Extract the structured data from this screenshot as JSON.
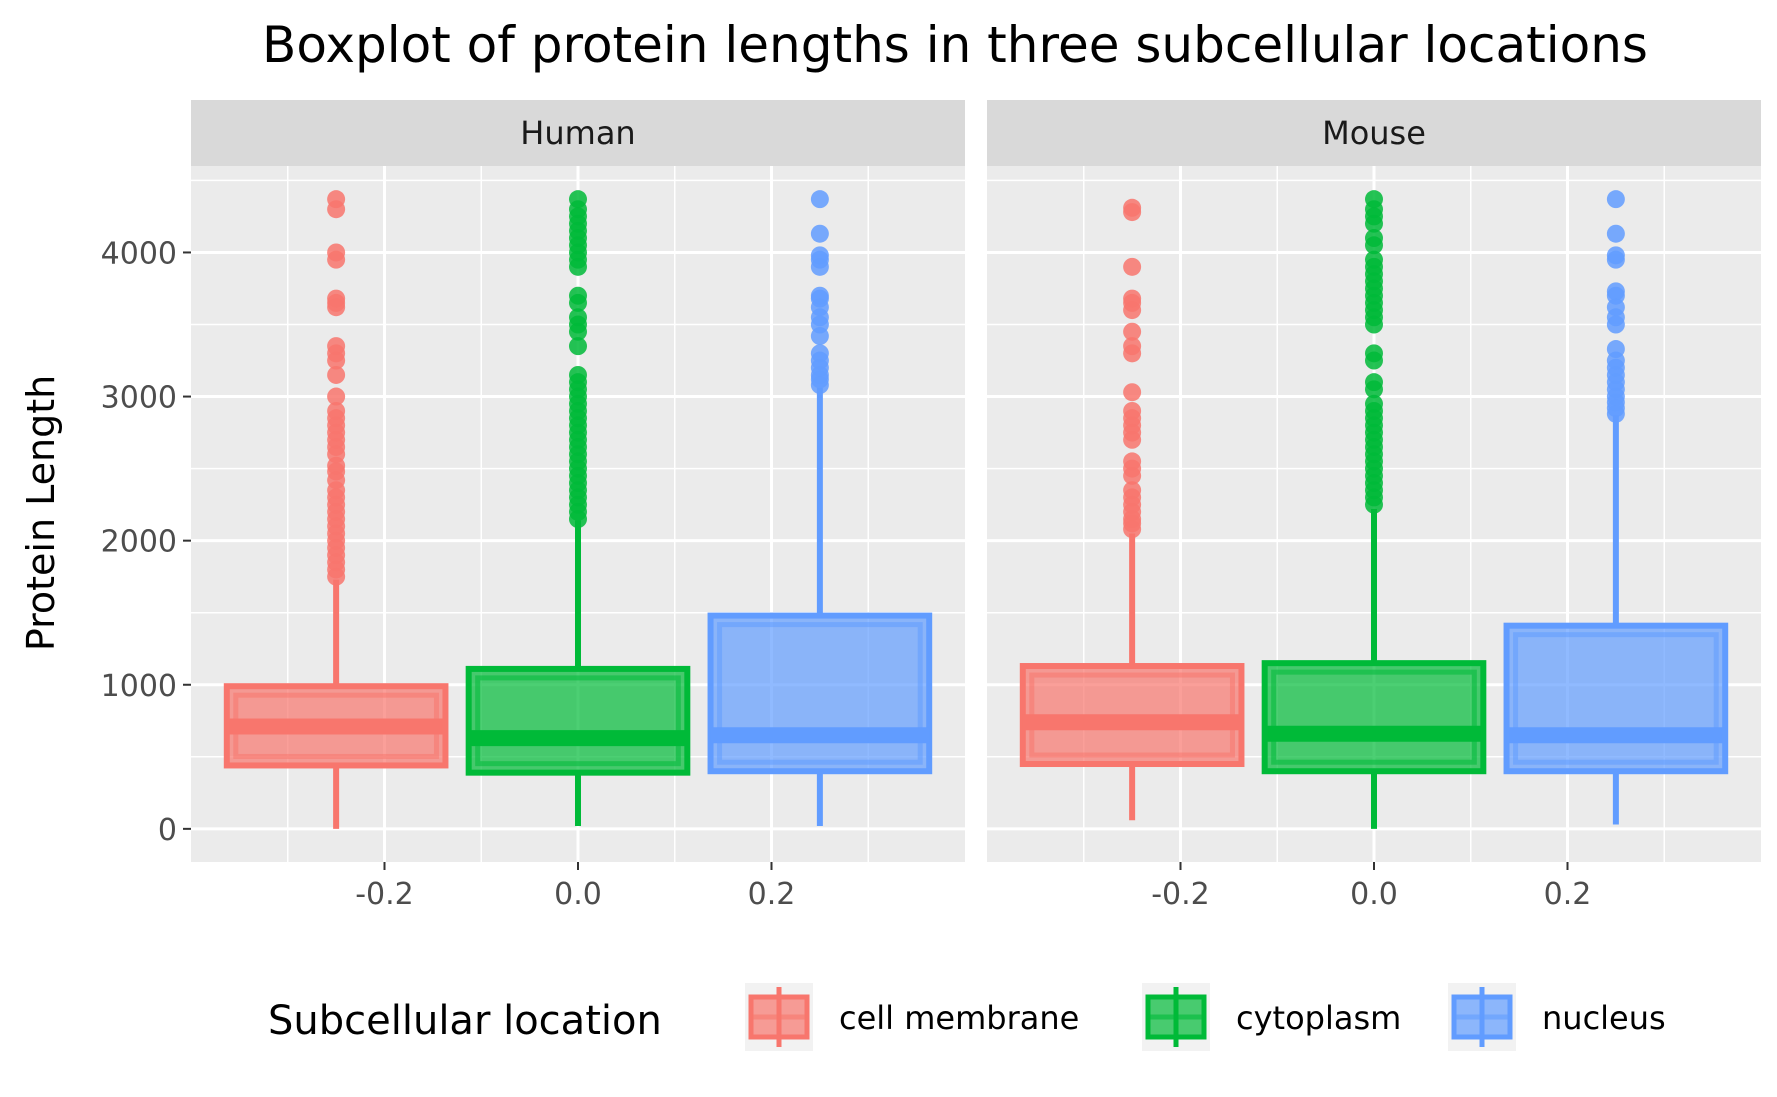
{
  "chart_data": {
    "type": "boxplot",
    "title": "Boxplot of protein lengths in three subcellular locations",
    "ylabel": "Protein Length",
    "xlabel": "",
    "xlim": [
      -0.4,
      0.4
    ],
    "ylim": [
      -230,
      4600
    ],
    "x_ticks": [
      "-0.2",
      "0.0",
      "0.2"
    ],
    "x_tick_values": [
      -0.2,
      0.0,
      0.2
    ],
    "y_ticks": [
      "0",
      "1000",
      "2000",
      "3000",
      "4000"
    ],
    "y_tick_values": [
      0,
      1000,
      2000,
      3000,
      4000
    ],
    "grid": true,
    "legend": {
      "title": "Subcellular location",
      "position": "bottom",
      "entries": [
        {
          "label": "cell membrane",
          "color": "#F8766D"
        },
        {
          "label": "cytoplasm",
          "color": "#00BA38"
        },
        {
          "label": "nucleus",
          "color": "#619CFF"
        }
      ]
    },
    "facets": [
      {
        "name": "Human",
        "boxes": [
          {
            "group": "cell membrane",
            "x": -0.25,
            "q1": 440,
            "median": 710,
            "q3": 990,
            "whisker_low": 0,
            "whisker_high": 1730,
            "outliers": [
              1750,
              1800,
              1850,
              1900,
              1950,
              2000,
              2050,
              2100,
              2150,
              2200,
              2250,
              2300,
              2350,
              2420,
              2480,
              2520,
              2600,
              2650,
              2700,
              2750,
              2800,
              2850,
              2900,
              3000,
              3150,
              3250,
              3300,
              3350,
              3620,
              3650,
              3680,
              3950,
              4000,
              4300,
              4370
            ]
          },
          {
            "group": "cytoplasm",
            "x": 0.0,
            "q1": 390,
            "median": 630,
            "q3": 1110,
            "whisker_low": 20,
            "whisker_high": 2140,
            "outliers": [
              2150,
              2200,
              2250,
              2300,
              2350,
              2400,
              2450,
              2500,
              2550,
              2600,
              2650,
              2700,
              2750,
              2800,
              2850,
              2900,
              2950,
              3000,
              3050,
              3100,
              3150,
              3350,
              3450,
              3500,
              3550,
              3650,
              3700,
              3900,
              3950,
              4000,
              4050,
              4100,
              4150,
              4200,
              4250,
              4300,
              4370
            ]
          },
          {
            "group": "nucleus",
            "x": 0.25,
            "q1": 400,
            "median": 650,
            "q3": 1480,
            "whisker_low": 20,
            "whisker_high": 3060,
            "outliers": [
              3080,
              3120,
              3150,
              3200,
              3250,
              3300,
              3420,
              3500,
              3550,
              3620,
              3680,
              3700,
              3900,
              3950,
              3980,
              4130,
              4370
            ]
          }
        ]
      },
      {
        "name": "Mouse",
        "boxes": [
          {
            "group": "cell membrane",
            "x": -0.25,
            "q1": 450,
            "median": 740,
            "q3": 1130,
            "whisker_low": 60,
            "whisker_high": 2050,
            "outliers": [
              2080,
              2120,
              2150,
              2200,
              2250,
              2300,
              2350,
              2450,
              2500,
              2550,
              2700,
              2750,
              2800,
              2850,
              2900,
              3030,
              3300,
              3350,
              3450,
              3600,
              3650,
              3680,
              3900,
              4280,
              4310
            ]
          },
          {
            "group": "cytoplasm",
            "x": 0.0,
            "q1": 400,
            "median": 660,
            "q3": 1150,
            "whisker_low": 0,
            "whisker_high": 2220,
            "outliers": [
              2250,
              2300,
              2350,
              2400,
              2450,
              2500,
              2550,
              2600,
              2650,
              2700,
              2750,
              2800,
              2850,
              2900,
              2950,
              3050,
              3100,
              3250,
              3300,
              3500,
              3550,
              3600,
              3650,
              3700,
              3750,
              3800,
              3850,
              3900,
              3950,
              4050,
              4100,
              4200,
              4250,
              4300,
              4370
            ]
          },
          {
            "group": "nucleus",
            "x": 0.25,
            "q1": 400,
            "median": 650,
            "q3": 1410,
            "whisker_low": 30,
            "whisker_high": 2870,
            "outliers": [
              2880,
              2920,
              2960,
              3000,
              3050,
              3100,
              3150,
              3200,
              3250,
              3330,
              3500,
              3550,
              3620,
              3700,
              3730,
              3950,
              3980,
              4130,
              4370
            ]
          }
        ]
      }
    ]
  }
}
